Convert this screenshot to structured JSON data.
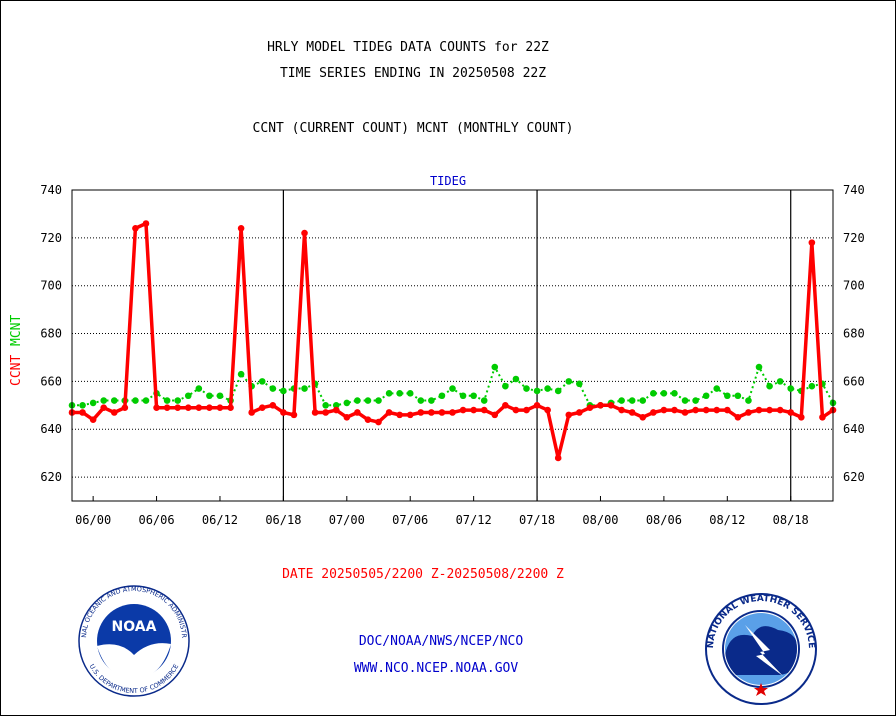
{
  "chart_data": {
    "type": "line",
    "title": "HRLY MODEL TIDEG DATA COUNTS for 22Z",
    "subtitle": "TIME SERIES ENDING IN 20250508 22Z",
    "series_caption": "CCNT (CURRENT COUNT) MCNT (MONTHLY COUNT)",
    "plot_title": "TIDEG",
    "ylabel_ccnt": "CCNT",
    "ylabel_mcnt": "MCNT",
    "xlabel": "DATE 20250505/2200 Z-20250508/2200 Z",
    "ylim": [
      610,
      740
    ],
    "yticks": [
      620,
      640,
      660,
      680,
      700,
      720,
      740
    ],
    "x_tick_labels": [
      "06/00",
      "06/06",
      "06/12",
      "06/18",
      "07/00",
      "07/06",
      "07/12",
      "07/18",
      "08/00",
      "08/06",
      "08/12",
      "08/18"
    ],
    "x_hours_per_tick": 6,
    "x_range_hours": [
      -2,
      70
    ],
    "day_boundaries_hours": [
      18,
      42,
      66
    ],
    "grid": true,
    "colors": {
      "ccnt": "#ff0000",
      "mcnt": "#00cc00",
      "accent": "#0000cc"
    },
    "series": [
      {
        "name": "CCNT",
        "values": [
          [
            -2,
            647
          ],
          [
            -1,
            647
          ],
          [
            0,
            644
          ],
          [
            1,
            649
          ],
          [
            2,
            647
          ],
          [
            3,
            649
          ],
          [
            4,
            724
          ],
          [
            5,
            726
          ],
          [
            6,
            649
          ],
          [
            7,
            649
          ],
          [
            8,
            649
          ],
          [
            9,
            649
          ],
          [
            10,
            649
          ],
          [
            11,
            649
          ],
          [
            12,
            649
          ],
          [
            13,
            649
          ],
          [
            14,
            724
          ],
          [
            15,
            647
          ],
          [
            16,
            649
          ],
          [
            17,
            650
          ],
          [
            18,
            647
          ],
          [
            19,
            646
          ],
          [
            20,
            722
          ],
          [
            21,
            647
          ],
          [
            22,
            647
          ],
          [
            23,
            648
          ],
          [
            24,
            645
          ],
          [
            25,
            647
          ],
          [
            26,
            644
          ],
          [
            27,
            643
          ],
          [
            28,
            647
          ],
          [
            29,
            646
          ],
          [
            30,
            646
          ],
          [
            31,
            647
          ],
          [
            32,
            647
          ],
          [
            33,
            647
          ],
          [
            34,
            647
          ],
          [
            35,
            648
          ],
          [
            36,
            648
          ],
          [
            37,
            648
          ],
          [
            38,
            646
          ],
          [
            39,
            650
          ],
          [
            40,
            648
          ],
          [
            41,
            648
          ],
          [
            42,
            650
          ],
          [
            43,
            648
          ],
          [
            44,
            628
          ],
          [
            45,
            646
          ],
          [
            46,
            647
          ],
          [
            47,
            649
          ],
          [
            48,
            650
          ],
          [
            49,
            650
          ],
          [
            50,
            648
          ],
          [
            51,
            647
          ],
          [
            52,
            645
          ],
          [
            53,
            647
          ],
          [
            54,
            648
          ],
          [
            55,
            648
          ],
          [
            56,
            647
          ],
          [
            57,
            648
          ],
          [
            58,
            648
          ],
          [
            59,
            648
          ],
          [
            60,
            648
          ],
          [
            61,
            645
          ],
          [
            62,
            647
          ],
          [
            63,
            648
          ],
          [
            64,
            648
          ],
          [
            65,
            648
          ],
          [
            66,
            647
          ],
          [
            67,
            645
          ],
          [
            68,
            718
          ],
          [
            69,
            645
          ],
          [
            70,
            648
          ]
        ]
      },
      {
        "name": "MCNT",
        "values": [
          [
            -2,
            650
          ],
          [
            -1,
            650
          ],
          [
            0,
            651
          ],
          [
            1,
            652
          ],
          [
            2,
            652
          ],
          [
            3,
            652
          ],
          [
            4,
            652
          ],
          [
            5,
            652
          ],
          [
            6,
            655
          ],
          [
            7,
            652
          ],
          [
            8,
            652
          ],
          [
            9,
            654
          ],
          [
            10,
            657
          ],
          [
            11,
            654
          ],
          [
            12,
            654
          ],
          [
            13,
            652
          ],
          [
            14,
            663
          ],
          [
            15,
            658
          ],
          [
            16,
            660
          ],
          [
            17,
            657
          ],
          [
            18,
            656
          ],
          [
            19,
            657
          ],
          [
            20,
            657
          ],
          [
            21,
            659
          ],
          [
            22,
            650
          ],
          [
            23,
            650
          ],
          [
            24,
            651
          ],
          [
            25,
            652
          ],
          [
            26,
            652
          ],
          [
            27,
            652
          ],
          [
            28,
            655
          ],
          [
            29,
            655
          ],
          [
            30,
            655
          ],
          [
            31,
            652
          ],
          [
            32,
            652
          ],
          [
            33,
            654
          ],
          [
            34,
            657
          ],
          [
            35,
            654
          ],
          [
            36,
            654
          ],
          [
            37,
            652
          ],
          [
            38,
            666
          ],
          [
            39,
            658
          ],
          [
            40,
            661
          ],
          [
            41,
            657
          ],
          [
            42,
            656
          ],
          [
            43,
            657
          ],
          [
            44,
            656
          ],
          [
            45,
            660
          ],
          [
            46,
            659
          ],
          [
            47,
            650
          ],
          [
            48,
            650
          ],
          [
            49,
            651
          ],
          [
            50,
            652
          ],
          [
            51,
            652
          ],
          [
            52,
            652
          ],
          [
            53,
            655
          ],
          [
            54,
            655
          ],
          [
            55,
            655
          ],
          [
            56,
            652
          ],
          [
            57,
            652
          ],
          [
            58,
            654
          ],
          [
            59,
            657
          ],
          [
            60,
            654
          ],
          [
            61,
            654
          ],
          [
            62,
            652
          ],
          [
            63,
            666
          ],
          [
            64,
            658
          ],
          [
            65,
            660
          ],
          [
            66,
            657
          ],
          [
            67,
            656
          ],
          [
            68,
            658
          ],
          [
            69,
            659
          ],
          [
            70,
            651
          ]
        ]
      }
    ]
  },
  "footer": {
    "org_line": "DOC/NOAA/NWS/NCEP/NCO",
    "url_line": "WWW.NCO.NCEP.NOAA.GOV"
  },
  "logos": {
    "noaa_text": "NOAA",
    "noaa_ring_top": "NATIONAL OCEANIC AND ATMOSPHERIC ADMINISTRATION",
    "noaa_ring_bottom": "U.S. DEPARTMENT OF COMMERCE",
    "nws_ring": "NATIONAL WEATHER SERVICE"
  }
}
